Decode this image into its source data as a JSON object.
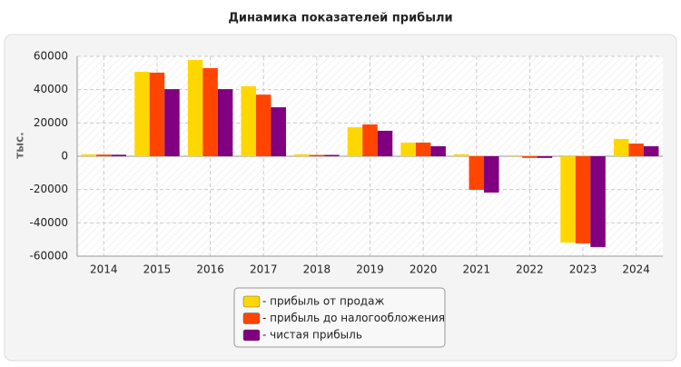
{
  "chart_data": {
    "type": "bar",
    "title": "Динамика показателей прибыли",
    "y_label": "тыс.",
    "categories": [
      "2014",
      "2015",
      "2016",
      "2017",
      "2018",
      "2019",
      "2020",
      "2021",
      "2022",
      "2023",
      "2024"
    ],
    "series": [
      {
        "name": "- прибыль от продаж",
        "color": "#ffd700",
        "values": [
          1200,
          50700,
          57800,
          42000,
          1200,
          17400,
          8200,
          1200,
          600,
          -51800,
          10400
        ]
      },
      {
        "name": "- прибыль до налогообложения",
        "color": "#ff4500",
        "values": [
          1000,
          50200,
          52900,
          37000,
          800,
          19100,
          8200,
          -20200,
          -1000,
          -52300,
          7600
        ]
      },
      {
        "name": "- чистая прибыль",
        "color": "#800080",
        "values": [
          900,
          40300,
          40300,
          29400,
          800,
          15300,
          6000,
          -21800,
          -1000,
          -54500,
          6000
        ]
      }
    ],
    "ylim": [
      -60000,
      60000
    ],
    "yticks": [
      -60000,
      -40000,
      -20000,
      0,
      20000,
      40000,
      60000
    ],
    "grid": true
  }
}
